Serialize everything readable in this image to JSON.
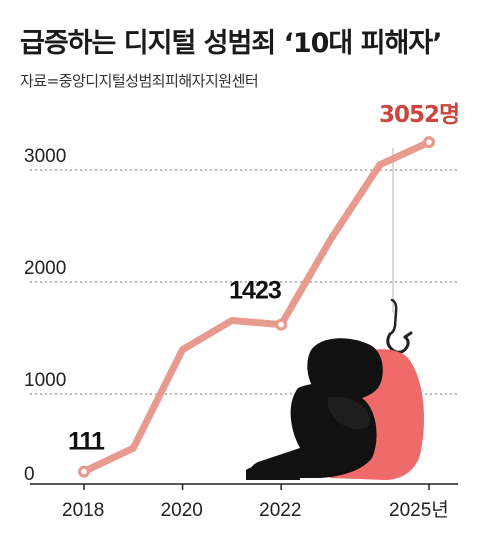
{
  "header": {
    "title": "급증하는 디지털 성범죄 ‘10대 피해자’",
    "source": "자료=중앙디지털성범죄피해자지원센터"
  },
  "colors": {
    "line": "#e89a8f",
    "highlight": "#c9473e",
    "figure_shirt": "#ef6a6a",
    "figure_dark": "#111111"
  },
  "icons": [
    "fishing-hook-icon",
    "sitting-person-icon"
  ],
  "chart_data": {
    "type": "line",
    "x": [
      2018,
      2019,
      2020,
      2021,
      2022,
      2023,
      2024,
      2025
    ],
    "y": [
      111,
      320,
      1200,
      1460,
      1423,
      2180,
      2850,
      3052
    ],
    "ylim": [
      0,
      3000
    ],
    "yticks": [
      "0",
      "1000",
      "2000",
      "3000"
    ],
    "xticks": [
      "2018",
      "2020",
      "2022",
      "2025년"
    ],
    "grid": true,
    "annotations": [
      {
        "x": 2018,
        "label": "111"
      },
      {
        "x": 2022,
        "label": "1423"
      },
      {
        "x": 2025,
        "label": "3052명"
      }
    ]
  }
}
